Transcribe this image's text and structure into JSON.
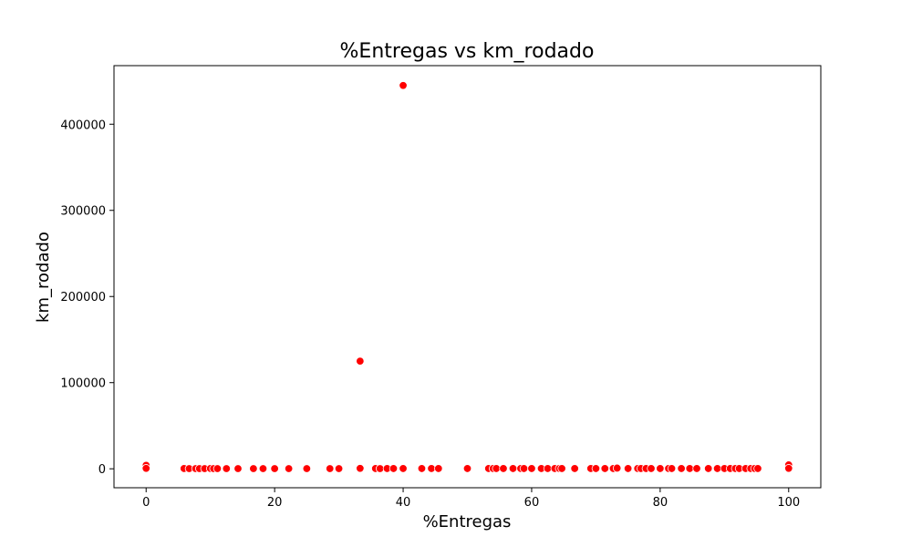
{
  "chart_data": {
    "type": "scatter",
    "title": "%Entregas vs km_rodado",
    "xlabel": "%Entregas",
    "ylabel": "km_rodado",
    "xlim": [
      -5,
      105
    ],
    "ylim": [
      -22000,
      468000
    ],
    "xticks": [
      0,
      20,
      40,
      60,
      80,
      100
    ],
    "yticks": [
      0,
      100000,
      200000,
      300000,
      400000
    ],
    "grid": false,
    "marker_color": "#ff0000",
    "marker_edge_color": "#ffffff",
    "x": [
      0,
      0,
      5.9,
      6.7,
      7.7,
      8.3,
      9.1,
      10.0,
      10.5,
      11.1,
      12.5,
      14.3,
      16.7,
      18.2,
      20.0,
      22.2,
      25.0,
      28.6,
      30.0,
      33.3,
      33.3,
      35.7,
      36.4,
      37.5,
      38.5,
      40.0,
      40.0,
      42.9,
      44.4,
      45.5,
      50.0,
      53.3,
      54.0,
      54.5,
      55.6,
      57.1,
      58.3,
      58.8,
      60.0,
      61.5,
      62.5,
      63.6,
      64.3,
      64.7,
      66.7,
      69.2,
      70.0,
      71.4,
      72.7,
      73.3,
      75.0,
      76.5,
      77.0,
      77.8,
      78.6,
      80.0,
      81.3,
      81.8,
      83.3,
      84.6,
      85.7,
      87.5,
      88.9,
      90.0,
      90.9,
      91.7,
      92.3,
      93.3,
      94.1,
      94.7,
      95.2,
      100,
      100
    ],
    "y": [
      4000,
      500,
      300,
      200,
      200,
      200,
      200,
      300,
      200,
      200,
      200,
      200,
      200,
      200,
      200,
      200,
      200,
      200,
      200,
      125000,
      500,
      300,
      200,
      300,
      300,
      445000,
      300,
      300,
      300,
      300,
      300,
      300,
      300,
      300,
      300,
      300,
      300,
      300,
      300,
      300,
      300,
      300,
      300,
      300,
      300,
      300,
      300,
      300,
      300,
      800,
      300,
      300,
      300,
      300,
      300,
      300,
      300,
      300,
      300,
      300,
      300,
      300,
      300,
      300,
      300,
      300,
      300,
      300,
      300,
      300,
      300,
      4500,
      500
    ]
  }
}
